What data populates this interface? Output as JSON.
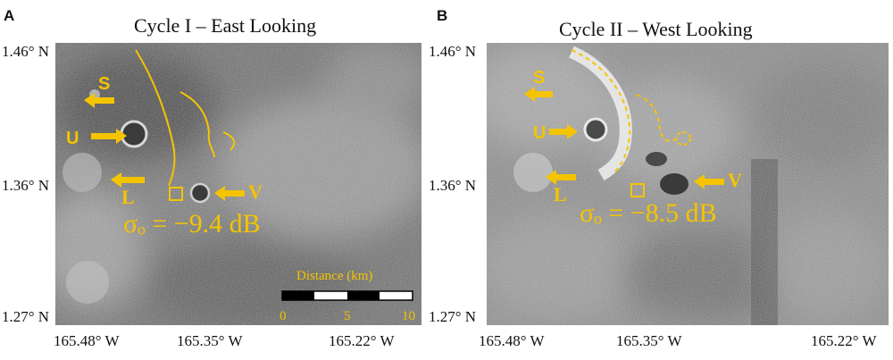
{
  "panels": [
    {
      "letter": "A",
      "title": "Cycle I –  East Looking",
      "lat_labels": [
        "1.46° N",
        "1.36° N",
        "1.27° N"
      ],
      "lon_labels": [
        "165.48° W",
        "165.35° W",
        "165.22° W"
      ],
      "feature_labels": {
        "s": "S",
        "u": "U",
        "l": "L",
        "v": "V"
      },
      "sigma": "σₒ = −9.4 dB",
      "scale": {
        "title": "Distance (km)",
        "ticks": [
          "0",
          "5",
          "10"
        ]
      }
    },
    {
      "letter": "B",
      "title": "Cycle II –  West Looking",
      "lat_labels": [
        "1.46° N",
        "1.36° N",
        "1.27° N"
      ],
      "lon_labels": [
        "165.48° W",
        "165.35° W",
        "165.22° W"
      ],
      "feature_labels": {
        "s": "S",
        "u": "U",
        "l": "L",
        "v": "V"
      },
      "sigma": "σₒ = −8.5 dB"
    }
  ],
  "colors": {
    "annotation": "#f5c400"
  }
}
